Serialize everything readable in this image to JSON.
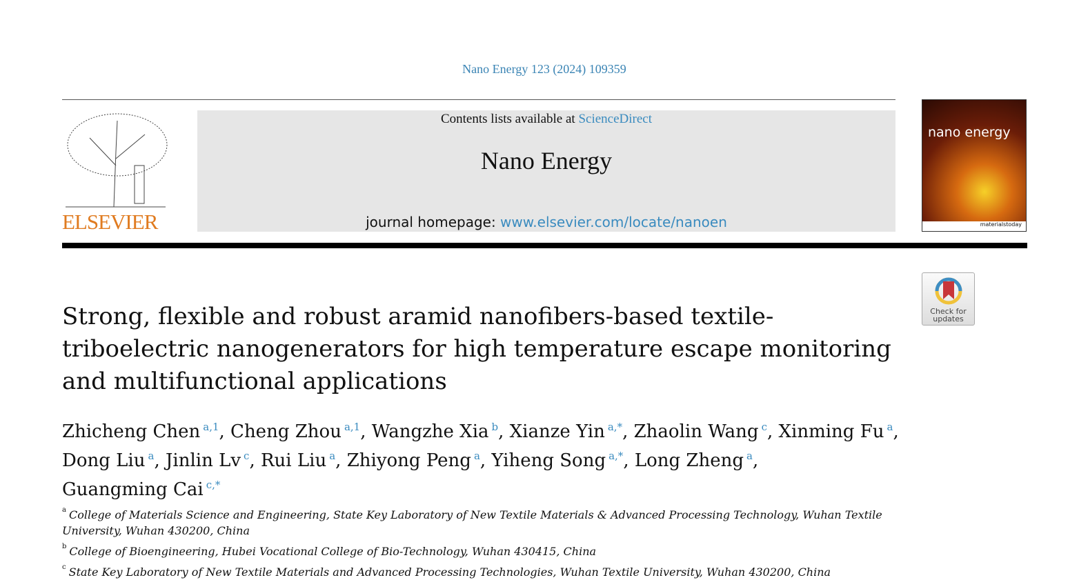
{
  "journal_ref": "Nano Energy 123 (2024) 109359",
  "header": {
    "contents_prefix": "Contents lists available at ",
    "contents_link": "ScienceDirect",
    "journal_name": "Nano Energy",
    "homepage_prefix": "journal homepage: ",
    "homepage_link": "www.elsevier.com/locate/nanoen",
    "publisher_logo": "ELSEVIER",
    "cover_title": "nano energy",
    "cover_footer": "materialstoday",
    "check_updates": [
      "Check for",
      "updates"
    ]
  },
  "title": "Strong, flexible and robust aramid nanofibers-based textile-triboelectric nanogenerators for high temperature escape monitoring and multifunctional applications",
  "authors": [
    {
      "name": "Zhicheng Chen",
      "sup": "a,1"
    },
    {
      "name": "Cheng Zhou",
      "sup": "a,1"
    },
    {
      "name": "Wangzhe Xia",
      "sup": "b"
    },
    {
      "name": "Xianze Yin",
      "sup": "a,*"
    },
    {
      "name": "Zhaolin Wang",
      "sup": "c"
    },
    {
      "name": "Xinming Fu",
      "sup": "a"
    },
    {
      "name": "Dong Liu",
      "sup": "a"
    },
    {
      "name": "Jinlin Lv",
      "sup": "c"
    },
    {
      "name": "Rui Liu",
      "sup": "a"
    },
    {
      "name": "Zhiyong Peng",
      "sup": "a"
    },
    {
      "name": "Yiheng Song",
      "sup": "a,*"
    },
    {
      "name": "Long Zheng",
      "sup": "a"
    },
    {
      "name": "Guangming Cai",
      "sup": "c,*"
    }
  ],
  "affiliations": [
    {
      "mark": "a",
      "text": "College of Materials Science and Engineering, State Key Laboratory of New Textile Materials & Advanced Processing Technology, Wuhan Textile University, Wuhan 430200, China"
    },
    {
      "mark": "b",
      "text": "College of Bioengineering, Hubei Vocational College of Bio-Technology, Wuhan 430415, China"
    },
    {
      "mark": "c",
      "text": "State Key Laboratory of New Textile Materials and Advanced Processing Technologies, Wuhan Textile University, Wuhan 430200, China"
    }
  ]
}
